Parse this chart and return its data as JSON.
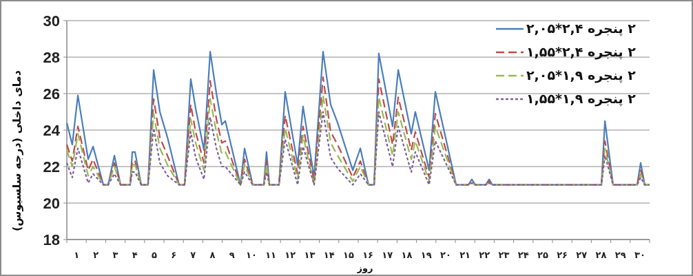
{
  "chart_data": {
    "type": "line",
    "xlabel": "روز",
    "ylabel": "دمای داخلی (درجه سلسیوس)",
    "x": [
      0,
      0.28,
      0.57,
      1.1,
      1.35,
      1.88,
      2.13,
      2.45,
      2.77,
      3.26,
      3.37,
      3.51,
      3.83,
      4.18,
      4.47,
      4.79,
      5.18,
      5.78,
      6.06,
      6.38,
      6.63,
      7.06,
      7.38,
      7.7,
      7.98,
      8.16,
      8.94,
      9.15,
      9.57,
      10.14,
      10.28,
      10.43,
      10.92,
      11.24,
      11.88,
      12.16,
      12.73,
      13.19,
      13.58,
      13.94,
      14.72,
      15.11,
      15.53,
      15.82,
      16.06,
      16.77,
      17.06,
      17.73,
      17.94,
      18.65,
      18.97,
      20.04,
      20.67,
      20.85,
      21.03,
      21.56,
      21.74,
      21.91,
      27.52,
      27.7,
      28.12,
      29.36,
      29.54,
      29.75,
      30
    ],
    "series": [
      {
        "name": "۲ پنجره ۲,۴*۲,۰۵",
        "color": "#4a7ebb",
        "line_style": "solid",
        "values": [
          24.4,
          23.2,
          25.9,
          22.4,
          23.1,
          21,
          21,
          22.6,
          21,
          21,
          22.8,
          22.8,
          21,
          21,
          27.3,
          25,
          23.6,
          21,
          21,
          26.8,
          25.2,
          22.9,
          28.3,
          26,
          24.3,
          24.5,
          21,
          23,
          21,
          21,
          22.8,
          21,
          21,
          26.1,
          22.1,
          25.3,
          21.4,
          28.3,
          25.4,
          24.4,
          21.8,
          23,
          21,
          21,
          28.2,
          24.2,
          27.3,
          23.8,
          25,
          21.8,
          26.1,
          21,
          21,
          21.3,
          21,
          21,
          21.3,
          21,
          21,
          24.5,
          21,
          21,
          22.2,
          21,
          21
        ]
      },
      {
        "name": "۲ پنجره ۲,۴*۱,۵۵",
        "color": "#be4b48",
        "line_style": "dashed",
        "values": [
          23.2,
          22.3,
          24.2,
          21.8,
          22.4,
          21,
          21,
          22.2,
          21,
          21,
          22.3,
          22.3,
          21,
          21,
          25.7,
          23.6,
          22.6,
          21,
          21,
          25.4,
          23.9,
          22.2,
          26.7,
          24.6,
          23.3,
          23.4,
          21,
          22.4,
          21,
          21,
          22.3,
          21,
          21,
          24.8,
          21.6,
          24.2,
          21.2,
          26.9,
          23.9,
          23.2,
          21.4,
          22.3,
          21,
          21,
          26.8,
          23.2,
          25.8,
          22.9,
          23.9,
          21.4,
          24.9,
          21,
          21,
          21.2,
          21,
          21,
          21.2,
          21,
          21,
          23.4,
          21,
          21,
          21.8,
          21,
          21
        ]
      },
      {
        "name": "۲ پنجره ۱,۹*۲,۰۵",
        "color": "#98b954",
        "line_style": "dashed",
        "values": [
          22.9,
          22,
          23.8,
          21.5,
          22,
          21,
          21,
          22,
          21,
          21,
          22.1,
          22.1,
          21,
          21,
          24.9,
          23,
          22.1,
          21,
          21,
          24.6,
          23.3,
          21.8,
          25.7,
          23.9,
          22.7,
          22.8,
          21,
          22.1,
          21,
          21,
          22.1,
          21,
          21,
          24.1,
          21.3,
          23.7,
          21,
          25.9,
          23.3,
          22.6,
          21.2,
          22,
          21,
          21,
          25.8,
          22.6,
          25,
          22.4,
          23.4,
          21.2,
          24.2,
          21,
          21,
          21.1,
          21,
          21,
          21.1,
          21,
          21,
          23,
          21,
          21,
          21.6,
          21,
          21
        ]
      },
      {
        "name": "۲ پنجره ۱,۹*۱,۵۵",
        "color": "#7d60a0",
        "line_style": "dotted",
        "values": [
          22.2,
          21.4,
          23,
          21.1,
          21.6,
          21,
          21,
          21.6,
          21,
          21,
          21.7,
          21.7,
          21,
          21,
          24.1,
          22.2,
          21.5,
          21,
          21,
          23.9,
          22.5,
          21.3,
          24.7,
          23,
          22,
          22,
          21,
          21.7,
          21,
          21,
          21.7,
          21,
          21,
          23.5,
          21,
          23.1,
          21,
          25,
          22.5,
          21.9,
          21,
          21.6,
          21,
          21,
          25,
          22,
          24.2,
          21.7,
          22.8,
          21,
          23.4,
          21,
          21,
          21.1,
          21,
          21,
          21.1,
          21,
          21,
          22.6,
          21,
          21,
          21.4,
          21,
          21
        ]
      }
    ],
    "xlim": [
      0,
      30
    ],
    "xticks": [
      {
        "value": 0,
        "label": null
      },
      {
        "value": 0.5,
        "label": "۱"
      },
      {
        "value": 1,
        "label": null
      },
      {
        "value": 1.5,
        "label": "۲"
      },
      {
        "value": 2,
        "label": null
      },
      {
        "value": 2.5,
        "label": "۳"
      },
      {
        "value": 3,
        "label": null
      },
      {
        "value": 3.5,
        "label": "۴"
      },
      {
        "value": 4,
        "label": null
      },
      {
        "value": 4.5,
        "label": "۵"
      },
      {
        "value": 5,
        "label": null
      },
      {
        "value": 5.5,
        "label": "۶"
      },
      {
        "value": 6,
        "label": null
      },
      {
        "value": 6.5,
        "label": "۷"
      },
      {
        "value": 7,
        "label": null
      },
      {
        "value": 7.5,
        "label": "۸"
      },
      {
        "value": 8,
        "label": null
      },
      {
        "value": 8.5,
        "label": "۹"
      },
      {
        "value": 9,
        "label": null
      },
      {
        "value": 9.5,
        "label": "۱۰"
      },
      {
        "value": 10,
        "label": null
      },
      {
        "value": 10.5,
        "label": "۱۱"
      },
      {
        "value": 11,
        "label": null
      },
      {
        "value": 11.5,
        "label": "۱۲"
      },
      {
        "value": 12,
        "label": null
      },
      {
        "value": 12.5,
        "label": "۱۳"
      },
      {
        "value": 13,
        "label": null
      },
      {
        "value": 13.5,
        "label": "۱۴"
      },
      {
        "value": 14,
        "label": null
      },
      {
        "value": 14.5,
        "label": "۱۵"
      },
      {
        "value": 15,
        "label": null
      },
      {
        "value": 15.5,
        "label": "۱۶"
      },
      {
        "value": 16,
        "label": null
      },
      {
        "value": 16.5,
        "label": "۱۷"
      },
      {
        "value": 17,
        "label": null
      },
      {
        "value": 17.5,
        "label": "۱۸"
      },
      {
        "value": 18,
        "label": null
      },
      {
        "value": 18.5,
        "label": "۱۹"
      },
      {
        "value": 19,
        "label": null
      },
      {
        "value": 19.5,
        "label": "۲۰"
      },
      {
        "value": 20,
        "label": null
      },
      {
        "value": 20.5,
        "label": "۲۱"
      },
      {
        "value": 21,
        "label": null
      },
      {
        "value": 21.5,
        "label": "۲۲"
      },
      {
        "value": 22,
        "label": null
      },
      {
        "value": 22.5,
        "label": "۲۳"
      },
      {
        "value": 23,
        "label": null
      },
      {
        "value": 23.5,
        "label": "۲۴"
      },
      {
        "value": 24,
        "label": null
      },
      {
        "value": 24.5,
        "label": "۲۵"
      },
      {
        "value": 25,
        "label": null
      },
      {
        "value": 25.5,
        "label": "۲۶"
      },
      {
        "value": 26,
        "label": null
      },
      {
        "value": 26.5,
        "label": "۲۷"
      },
      {
        "value": 27,
        "label": null
      },
      {
        "value": 27.5,
        "label": "۲۸"
      },
      {
        "value": 28,
        "label": null
      },
      {
        "value": 28.5,
        "label": "۲۹"
      },
      {
        "value": 29,
        "label": null
      },
      {
        "value": 29.5,
        "label": "۳۰"
      },
      {
        "value": 30,
        "label": null
      }
    ],
    "ylim": [
      18,
      30
    ],
    "yticks": [
      18,
      20,
      22,
      24,
      26,
      28,
      30
    ],
    "grid": "y",
    "legend": "top right",
    "marker": "none"
  }
}
